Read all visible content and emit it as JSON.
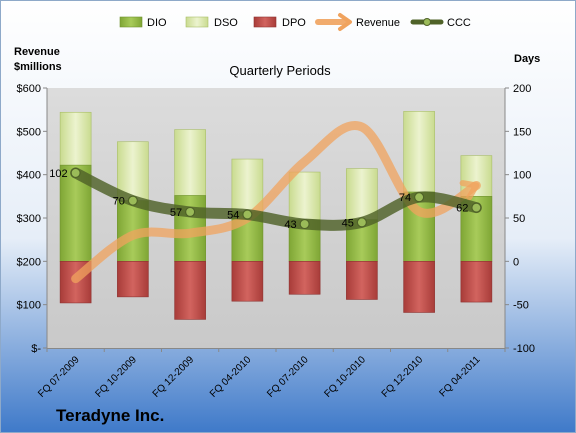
{
  "chart_data": {
    "type": "bar",
    "title": "Quarterly Periods",
    "company": "Teradyne Inc.",
    "left_axis_label": [
      "Revenue",
      "$millions"
    ],
    "right_axis_label": "Days",
    "categories": [
      "FQ 07-2009",
      "FQ 10-2009",
      "FQ 12-2009",
      "FQ 04-2010",
      "FQ 07-2010",
      "FQ 10-2010",
      "FQ 12-2010",
      "FQ 04-2011"
    ],
    "left_axis": {
      "min": 0,
      "max": 600,
      "step": 100,
      "tick_labels": [
        "$-",
        "$100",
        "$200",
        "$300",
        "$400",
        "$500",
        "$600"
      ]
    },
    "right_axis": {
      "min": -100,
      "max": 200,
      "step": 50,
      "tick_labels": [
        "-100",
        "-50",
        "0",
        "50",
        "100",
        "150",
        "200"
      ]
    },
    "series": [
      {
        "name": "DIO",
        "axis": "right",
        "kind": "bar",
        "values": [
          111,
          70,
          76,
          57,
          48,
          48,
          80,
          75
        ],
        "color": "#8DB33E"
      },
      {
        "name": "DSO",
        "axis": "right",
        "kind": "bar",
        "values": [
          172,
          138,
          152,
          118,
          103,
          107,
          173,
          122
        ],
        "color": "#D7E4A6"
      },
      {
        "name": "DPO",
        "axis": "right",
        "kind": "bar",
        "values": [
          -48,
          -41,
          -67,
          -46,
          -38,
          -44,
          -59,
          -47
        ],
        "color": "#C0504D"
      },
      {
        "name": "Revenue",
        "axis": "left",
        "kind": "line",
        "values": [
          160,
          260,
          265,
          300,
          430,
          510,
          315,
          375
        ],
        "color": "#F0A35E"
      },
      {
        "name": "CCC",
        "axis": "right",
        "kind": "line",
        "values": [
          102,
          70,
          57,
          54,
          43,
          45,
          74,
          62
        ],
        "color": "#4F6228"
      }
    ],
    "data_labels": [
      "102",
      "70",
      "57",
      "54",
      "43",
      "45",
      "74",
      "62"
    ],
    "legend": {
      "position": "top"
    },
    "grid": false
  },
  "colors": {
    "background_top": "#FFFFFF",
    "background_bottom": "#3E79C9",
    "plot_fill": "#D9D9D9"
  }
}
